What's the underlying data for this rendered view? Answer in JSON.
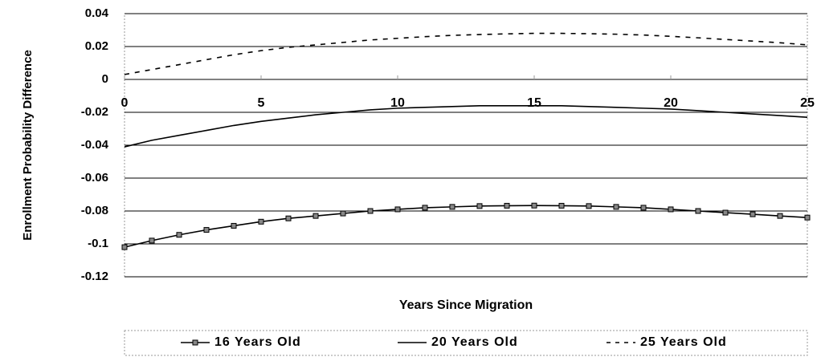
{
  "chart_data": {
    "type": "line",
    "x_label": "Years Since Migration",
    "y_label": "Enrollment Probability Difference",
    "x": [
      0,
      1,
      2,
      3,
      4,
      5,
      6,
      7,
      8,
      9,
      10,
      11,
      12,
      13,
      14,
      15,
      16,
      17,
      18,
      19,
      20,
      21,
      22,
      23,
      24,
      25
    ],
    "xlim": [
      0,
      25
    ],
    "xticks": [
      0,
      5,
      10,
      15,
      20,
      25
    ],
    "ylim": [
      -0.12,
      0.04
    ],
    "yticks": [
      0.04,
      0.02,
      0,
      -0.02,
      -0.04,
      -0.06,
      -0.08,
      -0.1,
      -0.12
    ],
    "grid": true,
    "legend": "bottom",
    "series": [
      {
        "name": "16 Years Old",
        "color": "#000000",
        "dash": "solid",
        "marker": "square",
        "values": [
          -0.102,
          -0.098,
          -0.0945,
          -0.0915,
          -0.089,
          -0.0865,
          -0.0845,
          -0.083,
          -0.0815,
          -0.08,
          -0.079,
          -0.078,
          -0.0775,
          -0.077,
          -0.0768,
          -0.0767,
          -0.0768,
          -0.077,
          -0.0775,
          -0.078,
          -0.079,
          -0.08,
          -0.081,
          -0.082,
          -0.083,
          -0.084
        ]
      },
      {
        "name": "20 Years Old",
        "color": "#000000",
        "dash": "solid",
        "marker": "none",
        "values": [
          -0.041,
          -0.037,
          -0.034,
          -0.031,
          -0.028,
          -0.0255,
          -0.0235,
          -0.0215,
          -0.02,
          -0.0185,
          -0.0175,
          -0.017,
          -0.0165,
          -0.016,
          -0.016,
          -0.016,
          -0.016,
          -0.0165,
          -0.017,
          -0.0175,
          -0.018,
          -0.019,
          -0.02,
          -0.021,
          -0.022,
          -0.023
        ]
      },
      {
        "name": "25 Years Old",
        "color": "#000000",
        "dash": "dashed",
        "marker": "none",
        "values": [
          0.003,
          0.006,
          0.009,
          0.012,
          0.015,
          0.0175,
          0.0195,
          0.021,
          0.0225,
          0.024,
          0.025,
          0.026,
          0.0268,
          0.0273,
          0.0277,
          0.028,
          0.028,
          0.0278,
          0.0275,
          0.027,
          0.0262,
          0.0253,
          0.0243,
          0.0233,
          0.0223,
          0.021
        ]
      }
    ]
  }
}
